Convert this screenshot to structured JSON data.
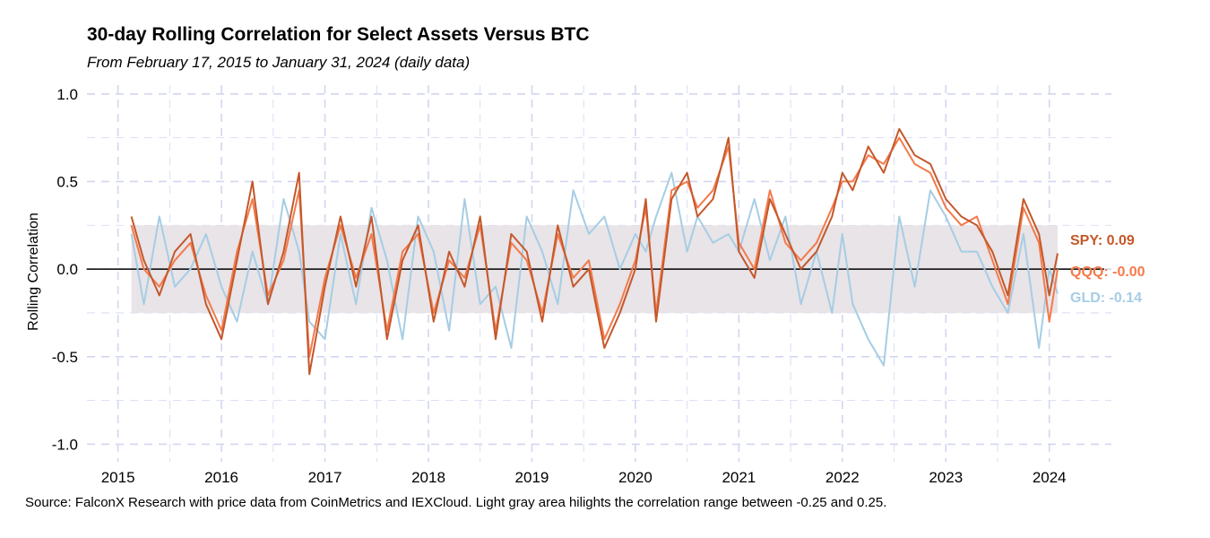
{
  "title": "30-day Rolling Correlation for Select Assets Versus BTC",
  "subtitle": "From February 17, 2015 to January 31, 2024 (daily data)",
  "caption": "Source: FalconX Research with price data from CoinMetrics and IEXCloud. Light gray area hilights the correlation range between -0.25 and 0.25.",
  "colors": {
    "SPY": "#c4582a",
    "QQQ": "#f47a4b",
    "GLD": "#a6cde4",
    "band": "#e8e4e8",
    "grid": "#d2d6f0",
    "zero": "#000000"
  },
  "chart_data": {
    "type": "line",
    "title": "30-day Rolling Correlation for Select Assets Versus BTC",
    "xlabel": "",
    "ylabel": "Rolling Correlation",
    "xlim": [
      2014.7,
      2024.6
    ],
    "ylim": [
      -1.1,
      1.05
    ],
    "xticks": [
      2015,
      2016,
      2017,
      2018,
      2019,
      2020,
      2021,
      2022,
      2023,
      2024
    ],
    "xtick_labels": [
      "2015",
      "2016",
      "2017",
      "2018",
      "2019",
      "2020",
      "2021",
      "2022",
      "2023",
      "2024"
    ],
    "yticks": [
      1.0,
      0.5,
      0.0,
      -0.5,
      -1.0
    ],
    "ytick_labels": [
      "1.0",
      "0.5",
      "0.0",
      "-0.5",
      "-1.0"
    ],
    "band": [
      -0.25,
      0.25
    ],
    "hline": 0,
    "grid": true,
    "x": [
      2015.13,
      2015.25,
      2015.4,
      2015.55,
      2015.7,
      2015.85,
      2016.0,
      2016.15,
      2016.3,
      2016.45,
      2016.6,
      2016.75,
      2016.85,
      2017.0,
      2017.15,
      2017.3,
      2017.45,
      2017.6,
      2017.75,
      2017.9,
      2018.05,
      2018.2,
      2018.35,
      2018.5,
      2018.65,
      2018.8,
      2018.95,
      2019.1,
      2019.25,
      2019.4,
      2019.55,
      2019.7,
      2019.85,
      2020.0,
      2020.1,
      2020.2,
      2020.35,
      2020.5,
      2020.6,
      2020.75,
      2020.9,
      2021.0,
      2021.15,
      2021.3,
      2021.45,
      2021.6,
      2021.75,
      2021.9,
      2022.0,
      2022.1,
      2022.25,
      2022.4,
      2022.55,
      2022.7,
      2022.85,
      2023.0,
      2023.15,
      2023.3,
      2023.45,
      2023.6,
      2023.75,
      2023.9,
      2024.0,
      2024.08
    ],
    "series": [
      {
        "name": "SPY",
        "label": "SPY: 0.09",
        "color": "#c4582a",
        "values": [
          0.3,
          0.05,
          -0.15,
          0.1,
          0.2,
          -0.2,
          -0.4,
          0.05,
          0.5,
          -0.2,
          0.1,
          0.55,
          -0.6,
          -0.1,
          0.3,
          -0.1,
          0.3,
          -0.4,
          0.05,
          0.25,
          -0.3,
          0.1,
          -0.1,
          0.3,
          -0.4,
          0.2,
          0.1,
          -0.3,
          0.25,
          -0.1,
          0.0,
          -0.45,
          -0.25,
          0.0,
          0.4,
          -0.3,
          0.4,
          0.55,
          0.3,
          0.4,
          0.75,
          0.1,
          -0.05,
          0.4,
          0.2,
          0.0,
          0.1,
          0.3,
          0.55,
          0.45,
          0.7,
          0.55,
          0.8,
          0.65,
          0.6,
          0.4,
          0.3,
          0.25,
          0.1,
          -0.15,
          0.4,
          0.2,
          -0.15,
          0.09
        ]
      },
      {
        "name": "QQQ",
        "label": "QQQ: -0.00",
        "color": "#f47a4b",
        "values": [
          0.25,
          0.0,
          -0.1,
          0.05,
          0.15,
          -0.15,
          -0.35,
          0.1,
          0.4,
          -0.15,
          0.05,
          0.45,
          -0.5,
          -0.05,
          0.25,
          -0.05,
          0.2,
          -0.35,
          0.1,
          0.2,
          -0.25,
          0.05,
          -0.05,
          0.25,
          -0.35,
          0.15,
          0.05,
          -0.25,
          0.2,
          -0.05,
          0.05,
          -0.4,
          -0.2,
          0.05,
          0.35,
          -0.25,
          0.45,
          0.5,
          0.35,
          0.45,
          0.7,
          0.15,
          0.0,
          0.45,
          0.15,
          0.05,
          0.15,
          0.35,
          0.5,
          0.5,
          0.65,
          0.6,
          0.75,
          0.6,
          0.55,
          0.35,
          0.25,
          0.3,
          0.05,
          -0.2,
          0.35,
          0.15,
          -0.3,
          0.0
        ]
      },
      {
        "name": "GLD",
        "label": "GLD: -0.14",
        "color": "#a6cde4",
        "values": [
          0.2,
          -0.2,
          0.3,
          -0.1,
          0.0,
          0.2,
          -0.1,
          -0.3,
          0.1,
          -0.2,
          0.4,
          0.1,
          -0.3,
          -0.4,
          0.2,
          -0.2,
          0.35,
          0.05,
          -0.4,
          0.3,
          0.1,
          -0.35,
          0.4,
          -0.2,
          -0.1,
          -0.45,
          0.3,
          0.1,
          -0.2,
          0.45,
          0.2,
          0.3,
          0.0,
          0.2,
          0.1,
          0.3,
          0.55,
          0.1,
          0.3,
          0.15,
          0.2,
          0.1,
          0.4,
          0.05,
          0.3,
          -0.2,
          0.1,
          -0.25,
          0.2,
          -0.2,
          -0.4,
          -0.55,
          0.3,
          -0.1,
          0.45,
          0.3,
          0.1,
          0.1,
          -0.1,
          -0.25,
          0.2,
          -0.45,
          0.0,
          -0.14
        ]
      }
    ]
  }
}
